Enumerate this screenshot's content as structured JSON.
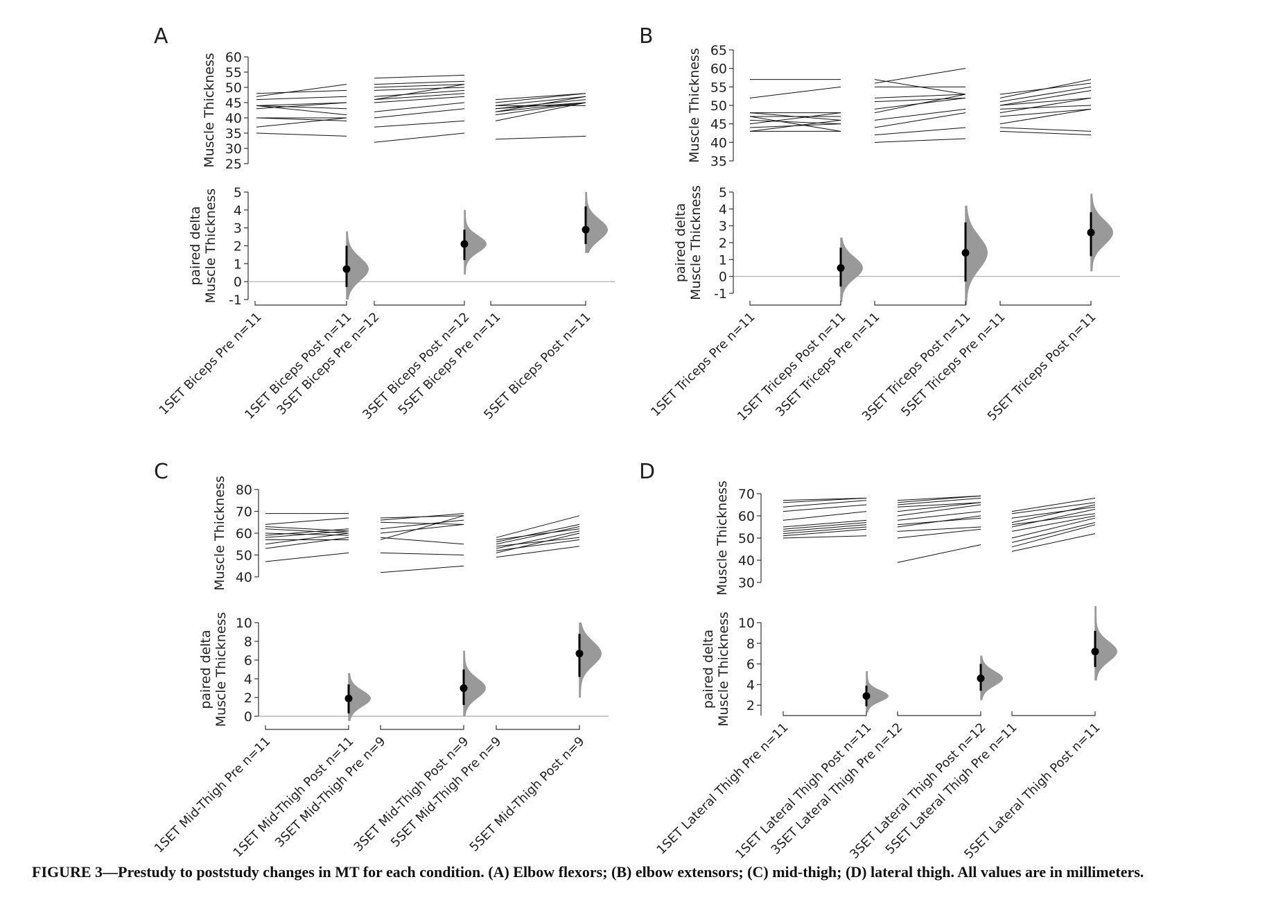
{
  "caption": "FIGURE 3—Prestudy to poststudy changes in MT for each condition. (A) Elbow flexors; (B) elbow extensors; (C) mid-thigh; (D) lateral thigh. All values are in millimeters.",
  "colors": {
    "line": "#111111",
    "distribution": "#999999",
    "zero_line": "#aaaaaa",
    "point": "#000000"
  },
  "chart_data": [
    {
      "type": "paired-estimation-plot",
      "panel": "A",
      "top": {
        "ylabel": "Muscle Thickness",
        "ylim": [
          25,
          60
        ],
        "yticks": [
          25,
          30,
          35,
          40,
          45,
          50,
          55,
          60
        ]
      },
      "bottom": {
        "ylabel": [
          "paired delta",
          "Muscle Thickness"
        ],
        "ylim": [
          -1,
          5
        ],
        "yticks": [
          -1,
          0,
          1,
          2,
          3,
          4,
          5
        ]
      },
      "categories": [
        "1SET Biceps Pre n=11",
        "1SET Biceps Post n=11",
        "3SET Biceps Pre n=12",
        "3SET Biceps Post n=12",
        "5SET Biceps Pre n=11",
        "5SET Biceps Post n=11"
      ],
      "groups": [
        {
          "pairs": [
            [
              48,
              49
            ],
            [
              47,
              51
            ],
            [
              46,
              47
            ],
            [
              44,
              45
            ],
            [
              44,
              43
            ],
            [
              44,
              41
            ],
            [
              40,
              40
            ],
            [
              40,
              39
            ],
            [
              37,
              40
            ],
            [
              35,
              34
            ],
            [
              43,
              45
            ]
          ],
          "delta": {
            "mean": 0.7,
            "ci": [
              -0.3,
              2.0
            ],
            "range": [
              -1.0,
              2.8
            ]
          }
        },
        {
          "pairs": [
            [
              53,
              54
            ],
            [
              51,
              52
            ],
            [
              50,
              51
            ],
            [
              47,
              49
            ],
            [
              46,
              48
            ],
            [
              46,
              51
            ],
            [
              45,
              47
            ],
            [
              42,
              45
            ],
            [
              40,
              43
            ],
            [
              37,
              39
            ],
            [
              32,
              35
            ],
            [
              49,
              50
            ]
          ],
          "delta": {
            "mean": 2.1,
            "ci": [
              1.2,
              2.9
            ],
            "range": [
              0.4,
              4.0
            ]
          }
        },
        {
          "pairs": [
            [
              46,
              48
            ],
            [
              45,
              48
            ],
            [
              44,
              47
            ],
            [
              43,
              46
            ],
            [
              43,
              45
            ],
            [
              42,
              47
            ],
            [
              42,
              45
            ],
            [
              41,
              45
            ],
            [
              39,
              45
            ],
            [
              33,
              34
            ],
            [
              44,
              44
            ]
          ],
          "delta": {
            "mean": 2.9,
            "ci": [
              2.1,
              4.2
            ],
            "range": [
              1.6,
              5.0
            ]
          }
        }
      ]
    },
    {
      "type": "paired-estimation-plot",
      "panel": "B",
      "top": {
        "ylabel": "Muscle Thickness",
        "ylim": [
          35,
          65
        ],
        "yticks": [
          35,
          40,
          45,
          50,
          55,
          60,
          65
        ]
      },
      "bottom": {
        "ylabel": [
          "paired delta",
          "Muscle Thickness"
        ],
        "ylim": [
          -1,
          5
        ],
        "yticks": [
          -1,
          0,
          1,
          2,
          3,
          4,
          5
        ]
      },
      "categories": [
        "1SET Triceps Pre n=11",
        "1SET Triceps Post n=11",
        "3SET Triceps Pre n=11",
        "3SET Triceps Post n=11",
        "5SET Triceps Pre n=11",
        "5SET Triceps Post n=11"
      ],
      "groups": [
        {
          "pairs": [
            [
              57,
              57
            ],
            [
              52,
              55
            ],
            [
              48,
              48
            ],
            [
              48,
              46
            ],
            [
              47,
              47
            ],
            [
              46,
              45
            ],
            [
              45,
              48
            ],
            [
              44,
              45
            ],
            [
              43,
              43
            ],
            [
              43,
              46
            ],
            [
              47,
              43
            ]
          ],
          "delta": {
            "mean": 0.5,
            "ci": [
              -0.6,
              1.7
            ],
            "range": [
              -1.5,
              2.3
            ]
          }
        },
        {
          "pairs": [
            [
              57,
              53
            ],
            [
              56,
              60
            ],
            [
              55,
              55
            ],
            [
              52,
              53
            ],
            [
              51,
              52
            ],
            [
              49,
              52
            ],
            [
              48,
              53
            ],
            [
              46,
              49
            ],
            [
              44,
              48
            ],
            [
              42,
              44
            ],
            [
              40,
              41
            ]
          ],
          "delta": {
            "mean": 1.4,
            "ci": [
              -0.3,
              3.2
            ],
            "range": [
              -1.7,
              4.2
            ]
          }
        },
        {
          "pairs": [
            [
              53,
              56
            ],
            [
              52,
              57
            ],
            [
              51,
              55
            ],
            [
              50,
              52
            ],
            [
              50,
              54
            ],
            [
              49,
              50
            ],
            [
              48,
              52
            ],
            [
              47,
              49
            ],
            [
              45,
              49
            ],
            [
              44,
              43
            ],
            [
              43,
              42
            ]
          ],
          "delta": {
            "mean": 2.6,
            "ci": [
              1.2,
              3.8
            ],
            "range": [
              0.3,
              4.9
            ]
          }
        }
      ]
    },
    {
      "type": "paired-estimation-plot",
      "panel": "C",
      "top": {
        "ylabel": "Muscle Thickness",
        "ylim": [
          40,
          80
        ],
        "yticks": [
          40,
          50,
          60,
          70,
          80
        ]
      },
      "bottom": {
        "ylabel": [
          "paired delta",
          "Muscle Thickness"
        ],
        "ylim": [
          0,
          10
        ],
        "yticks": [
          0,
          2,
          4,
          6,
          8,
          10
        ]
      },
      "categories": [
        "1SET Mid-Thigh Pre n=11",
        "1SET Mid-Thigh Post n=11",
        "3SET Mid-Thigh Pre n=9",
        "3SET Mid-Thigh Post n=9",
        "5SET Mid-Thigh Pre n=9",
        "5SET Mid-Thigh Post n=9"
      ],
      "groups": [
        {
          "pairs": [
            [
              69,
              69
            ],
            [
              64,
              67
            ],
            [
              63,
              61
            ],
            [
              62,
              60
            ],
            [
              60,
              59
            ],
            [
              59,
              62
            ],
            [
              57,
              57
            ],
            [
              55,
              60
            ],
            [
              53,
              58
            ],
            [
              47,
              51
            ],
            [
              58,
              61
            ]
          ],
          "delta": {
            "mean": 1.9,
            "ci": [
              0.3,
              3.4
            ],
            "range": [
              -0.5,
              4.6
            ]
          }
        },
        {
          "pairs": [
            [
              67,
              68
            ],
            [
              66,
              69
            ],
            [
              62,
              66
            ],
            [
              60,
              64
            ],
            [
              58,
              55
            ],
            [
              57,
              68
            ],
            [
              51,
              50
            ],
            [
              42,
              45
            ],
            [
              65,
              64
            ]
          ],
          "delta": {
            "mean": 3.0,
            "ci": [
              1.2,
              5.0
            ],
            "range": [
              0.0,
              7.0
            ]
          }
        },
        {
          "pairs": [
            [
              58,
              68
            ],
            [
              57,
              62
            ],
            [
              56,
              64
            ],
            [
              55,
              63
            ],
            [
              54,
              58
            ],
            [
              53,
              61
            ],
            [
              52,
              57
            ],
            [
              51,
              60
            ],
            [
              49,
              54
            ]
          ],
          "delta": {
            "mean": 6.7,
            "ci": [
              4.2,
              8.8
            ],
            "range": [
              2.0,
              10.0
            ]
          }
        }
      ]
    },
    {
      "type": "paired-estimation-plot",
      "panel": "D",
      "top": {
        "ylabel": "Muscle Thickness",
        "ylim": [
          30,
          70
        ],
        "yticks": [
          30,
          40,
          50,
          60,
          70
        ]
      },
      "bottom": {
        "ylabel": [
          "paired delta",
          "Muscle Thickness"
        ],
        "ylim": [
          1,
          10
        ],
        "yticks": [
          2,
          4,
          6,
          8,
          10
        ]
      },
      "categories": [
        "1SET Lateral Thigh Pre n=11",
        "1SET Lateral Thigh Post n=11",
        "3SET Lateral Thigh Pre n=12",
        "3SET Lateral Thigh Post n=12",
        "5SET Lateral Thigh Pre n=11",
        "5SET Lateral Thigh Post n=11"
      ],
      "groups": [
        {
          "pairs": [
            [
              67,
              68
            ],
            [
              66,
              68
            ],
            [
              64,
              67
            ],
            [
              62,
              65
            ],
            [
              58,
              62
            ],
            [
              55,
              58
            ],
            [
              54,
              57
            ],
            [
              53,
              56
            ],
            [
              52,
              55
            ],
            [
              51,
              54
            ],
            [
              50,
              51
            ]
          ],
          "delta": {
            "mean": 2.9,
            "ci": [
              1.9,
              3.9
            ],
            "range": [
              1.3,
              5.3
            ]
          }
        },
        {
          "pairs": [
            [
              67,
              69
            ],
            [
              66,
              69
            ],
            [
              65,
              68
            ],
            [
              64,
              66
            ],
            [
              62,
              66
            ],
            [
              60,
              65
            ],
            [
              58,
              62
            ],
            [
              56,
              59
            ],
            [
              55,
              60
            ],
            [
              53,
              55
            ],
            [
              50,
              54
            ],
            [
              39,
              47
            ]
          ],
          "delta": {
            "mean": 4.6,
            "ci": [
              3.4,
              6.0
            ],
            "range": [
              2.5,
              6.8
            ]
          }
        },
        {
          "pairs": [
            [
              62,
              68
            ],
            [
              61,
              66
            ],
            [
              59,
              64
            ],
            [
              57,
              65
            ],
            [
              56,
              61
            ],
            [
              55,
              63
            ],
            [
              53,
              60
            ],
            [
              50,
              59
            ],
            [
              48,
              57
            ],
            [
              46,
              56
            ],
            [
              44,
              52
            ]
          ],
          "delta": {
            "mean": 7.2,
            "ci": [
              5.7,
              9.2
            ],
            "range": [
              4.4,
              11.6
            ]
          }
        }
      ]
    }
  ]
}
